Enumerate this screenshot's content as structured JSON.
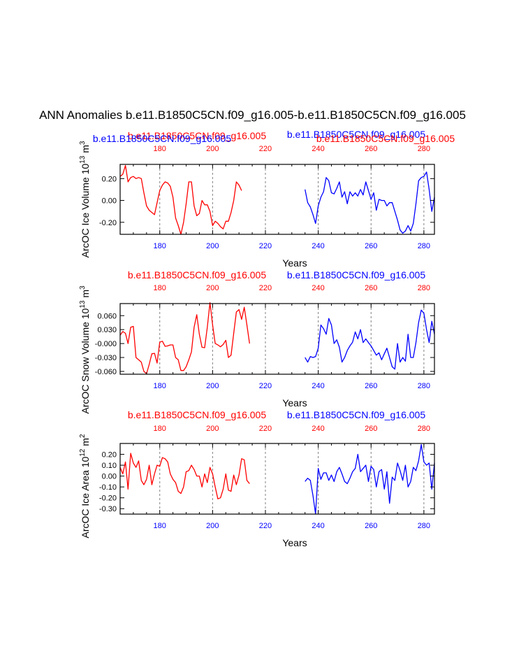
{
  "title": "ANN Anomalies b.e11.B1850C5CN.f09_g16.005-b.e11.B1850C5CN.f09_g16.005",
  "colors": {
    "case1": "#ff0000",
    "case2": "#0000ff",
    "axes": "#000000",
    "grid": "#808080"
  },
  "chart_data": [
    {
      "type": "line",
      "panel": "ice-volume",
      "ylabel": "ArcOC Ice Volume 10^13 m^3",
      "ylabel_parts": {
        "text": "ArcOC Ice Volume 10",
        "exp1": "13",
        "unit": " m",
        "exp2": "3"
      },
      "xlabel": "Years",
      "top_label_case1": "b.e11.B1850C5CN.f09_g16.005",
      "top_label_case2": "b.e11.B1850C5CN.f09_g16.005",
      "xlim": [
        165,
        284
      ],
      "ylim": [
        -0.31,
        0.33
      ],
      "xticks": [
        180,
        200,
        220,
        240,
        260,
        280
      ],
      "yticks": [
        0.2,
        0.0,
        -0.2
      ],
      "ytick_labels": [
        "0.20",
        "0.00",
        "-0.20"
      ],
      "grid_x": [
        180,
        200,
        220,
        240,
        260,
        280
      ],
      "series": [
        {
          "name": "b.e11.B1850C5CN.f09_g16.005",
          "x": [
            165,
            166,
            167,
            168,
            169,
            170,
            171,
            172,
            173,
            174,
            175,
            176,
            177,
            178,
            179,
            180,
            181,
            182,
            183,
            184,
            185,
            186,
            187,
            188,
            189,
            190,
            191,
            192,
            193,
            194,
            195,
            196,
            197,
            198,
            199,
            200,
            201,
            202,
            203,
            204,
            205,
            206,
            207,
            208,
            209,
            210,
            211,
            212,
            213,
            214
          ],
          "values": [
            0.22,
            0.24,
            0.32,
            0.17,
            0.21,
            0.22,
            0.2,
            0.21,
            0.2,
            0.07,
            -0.05,
            -0.09,
            -0.11,
            -0.13,
            -0.02,
            0.09,
            0.14,
            0.17,
            0.16,
            0.13,
            0.03,
            -0.16,
            -0.23,
            -0.31,
            -0.2,
            -0.03,
            0.17,
            0.17,
            -0.05,
            -0.14,
            -0.12,
            0.0,
            -0.04,
            -0.04,
            -0.1,
            -0.23,
            -0.19,
            -0.21,
            -0.24,
            -0.26,
            -0.19,
            -0.19,
            -0.11,
            0.0,
            0.17,
            0.14,
            0.09,
            null,
            null,
            null
          ]
        },
        {
          "name": "b.e11.B1850C5CN.f09_g16.005",
          "x": [
            235,
            236,
            237,
            238,
            239,
            240,
            241,
            242,
            243,
            244,
            245,
            246,
            247,
            248,
            249,
            250,
            251,
            252,
            253,
            254,
            255,
            256,
            257,
            258,
            259,
            260,
            261,
            262,
            263,
            264,
            265,
            266,
            267,
            268,
            269,
            270,
            271,
            272,
            273,
            274,
            275,
            276,
            277,
            278,
            279,
            280,
            281,
            282,
            283,
            284
          ],
          "values": [
            0.1,
            -0.02,
            -0.06,
            -0.13,
            -0.21,
            -0.05,
            0.03,
            0.08,
            0.21,
            0.18,
            0.07,
            0.06,
            0.11,
            0.17,
            0.03,
            0.08,
            -0.03,
            0.08,
            0.04,
            0.07,
            0.04,
            0.1,
            0.05,
            0.17,
            0.09,
            0.01,
            0.07,
            -0.09,
            0.01,
            0.0,
            0.0,
            -0.05,
            -0.02,
            -0.02,
            -0.1,
            -0.18,
            -0.27,
            -0.3,
            -0.28,
            -0.23,
            -0.28,
            -0.21,
            -0.03,
            0.18,
            0.21,
            0.22,
            0.26,
            0.1,
            -0.1,
            0.03
          ]
        }
      ]
    },
    {
      "type": "line",
      "panel": "snow-volume",
      "ylabel": "ArcOC Snow Volume 10^13 m^3",
      "ylabel_parts": {
        "text": "ArcOC Snow Volume 10",
        "exp1": "13",
        "unit": " m",
        "exp2": "3"
      },
      "xlabel": "Years",
      "top_label_case1": "b.e11.B1850C5CN.f09_g16.005",
      "top_label_case2": "b.e11.B1850C5CN.f09_g16.005",
      "xlim": [
        165,
        284
      ],
      "ylim": [
        -0.066,
        0.086
      ],
      "xticks": [
        180,
        200,
        220,
        240,
        260,
        280
      ],
      "yticks": [
        0.06,
        0.03,
        0.0,
        -0.03,
        -0.06
      ],
      "ytick_labels": [
        "0.060",
        "0.030",
        "-0.000",
        "-0.030",
        "-0.060"
      ],
      "grid_x": [
        180,
        200,
        220,
        240,
        260,
        280
      ],
      "series": [
        {
          "name": "b.e11.B1850C5CN.f09_g16.005",
          "x": [
            165,
            166,
            167,
            168,
            169,
            170,
            171,
            172,
            173,
            174,
            175,
            176,
            177,
            178,
            179,
            180,
            181,
            182,
            183,
            184,
            185,
            186,
            187,
            188,
            189,
            190,
            191,
            192,
            193,
            194,
            195,
            196,
            197,
            198,
            199,
            200,
            201,
            202,
            203,
            204,
            205,
            206,
            207,
            208,
            209,
            210,
            211,
            212,
            213,
            214
          ],
          "values": [
            0.018,
            0.026,
            0.022,
            0.0,
            0.035,
            0.037,
            -0.03,
            -0.035,
            -0.04,
            -0.06,
            -0.065,
            -0.045,
            -0.022,
            -0.021,
            -0.042,
            0.003,
            0.005,
            -0.006,
            -0.005,
            -0.003,
            -0.003,
            -0.03,
            -0.035,
            -0.058,
            -0.058,
            -0.05,
            -0.035,
            -0.018,
            0.035,
            0.062,
            0.02,
            -0.008,
            -0.009,
            0.035,
            0.088,
            0.04,
            0.0,
            -0.003,
            -0.007,
            -0.002,
            0.007,
            -0.03,
            -0.025,
            0.022,
            0.068,
            0.073,
            0.052,
            0.078,
            0.04,
            0.0
          ]
        },
        {
          "name": "b.e11.B1850C5CN.f09_g16.005",
          "x": [
            235,
            236,
            237,
            238,
            239,
            240,
            241,
            242,
            243,
            244,
            245,
            246,
            247,
            248,
            249,
            250,
            251,
            252,
            253,
            254,
            255,
            256,
            257,
            258,
            259,
            260,
            261,
            262,
            263,
            264,
            265,
            266,
            267,
            268,
            269,
            270,
            271,
            272,
            273,
            274,
            275,
            276,
            277,
            278,
            279,
            280,
            281,
            282,
            283,
            284
          ],
          "values": [
            -0.03,
            -0.04,
            -0.028,
            -0.03,
            -0.028,
            -0.01,
            0.04,
            0.032,
            0.02,
            0.054,
            0.04,
            0.0,
            0.008,
            -0.008,
            -0.04,
            -0.03,
            -0.015,
            -0.005,
            0.003,
            0.025,
            0.01,
            0.03,
            0.002,
            0.01,
            0.002,
            -0.005,
            -0.015,
            -0.025,
            -0.02,
            -0.035,
            -0.022,
            -0.01,
            -0.03,
            -0.05,
            -0.055,
            0.0,
            -0.04,
            -0.03,
            -0.038,
            0.02,
            -0.03,
            -0.03,
            0.002,
            0.045,
            0.072,
            0.065,
            0.03,
            0.002,
            0.048,
            0.02
          ]
        }
      ]
    },
    {
      "type": "line",
      "panel": "ice-area",
      "ylabel": "ArcOC Ice Area 10^12 m^2",
      "ylabel_parts": {
        "text": "ArcOC Ice Area 10",
        "exp1": "12",
        "unit": " m",
        "exp2": "2"
      },
      "xlabel": "Years",
      "top_label_case1": "b.e11.B1850C5CN.f09_g16.005",
      "top_label_case2": "b.e11.B1850C5CN.f09_g16.005",
      "xlim": [
        165,
        284
      ],
      "ylim": [
        -0.35,
        0.3
      ],
      "xticks": [
        180,
        200,
        220,
        240,
        260,
        280
      ],
      "yticks": [
        0.2,
        0.1,
        0.0,
        -0.1,
        -0.2,
        -0.3
      ],
      "ytick_labels": [
        "0.20",
        "0.10",
        "0.00",
        "-0.10",
        "-0.20",
        "-0.30"
      ],
      "grid_x": [
        180,
        200,
        220,
        240,
        260,
        280
      ],
      "series": [
        {
          "name": "b.e11.B1850C5CN.f09_g16.005",
          "x": [
            165,
            166,
            167,
            168,
            169,
            170,
            171,
            172,
            173,
            174,
            175,
            176,
            177,
            178,
            179,
            180,
            181,
            182,
            183,
            184,
            185,
            186,
            187,
            188,
            189,
            190,
            191,
            192,
            193,
            194,
            195,
            196,
            197,
            198,
            199,
            200,
            201,
            202,
            203,
            204,
            205,
            206,
            207,
            208,
            209,
            210,
            211,
            212,
            213,
            214
          ],
          "values": [
            0.08,
            0.02,
            0.13,
            -0.12,
            0.21,
            0.12,
            0.08,
            0.14,
            -0.04,
            -0.08,
            -0.03,
            0.1,
            -0.08,
            0.02,
            0.1,
            0.09,
            0.17,
            0.16,
            0.13,
            0.02,
            -0.03,
            -0.06,
            -0.14,
            -0.16,
            -0.1,
            0.04,
            0.05,
            0.1,
            0.06,
            0.0,
            0.0,
            -0.1,
            0.02,
            -0.06,
            0.08,
            0.02,
            -0.1,
            -0.21,
            -0.2,
            -0.12,
            0.02,
            -0.13,
            -0.14,
            0.01,
            -0.08,
            0.01,
            0.16,
            0.15,
            -0.04,
            -0.07
          ]
        },
        {
          "name": "b.e11.B1850C5CN.f09_g16.005",
          "x": [
            235,
            236,
            237,
            238,
            239,
            240,
            241,
            242,
            243,
            244,
            245,
            246,
            247,
            248,
            249,
            250,
            251,
            252,
            253,
            254,
            255,
            256,
            257,
            258,
            259,
            260,
            261,
            262,
            263,
            264,
            265,
            266,
            267,
            268,
            269,
            270,
            271,
            272,
            273,
            274,
            275,
            276,
            277,
            278,
            279,
            280,
            281,
            282,
            283,
            284
          ],
          "values": [
            -0.05,
            -0.02,
            -0.04,
            -0.18,
            -0.35,
            0.07,
            -0.03,
            0.03,
            0.03,
            -0.04,
            0.01,
            -0.05,
            0.04,
            0.08,
            0.02,
            -0.05,
            -0.07,
            -0.02,
            0.04,
            0.07,
            0.2,
            0.04,
            0.07,
            0.1,
            -0.05,
            0.09,
            0.06,
            -0.1,
            0.04,
            0.06,
            -0.12,
            0.04,
            -0.25,
            -0.01,
            -0.04,
            0.12,
            0.05,
            -0.04,
            0.1,
            -0.1,
            -0.05,
            0.08,
            0.05,
            0.14,
            0.29,
            0.13,
            0.1,
            0.12,
            -0.12,
            0.12
          ]
        }
      ]
    }
  ]
}
